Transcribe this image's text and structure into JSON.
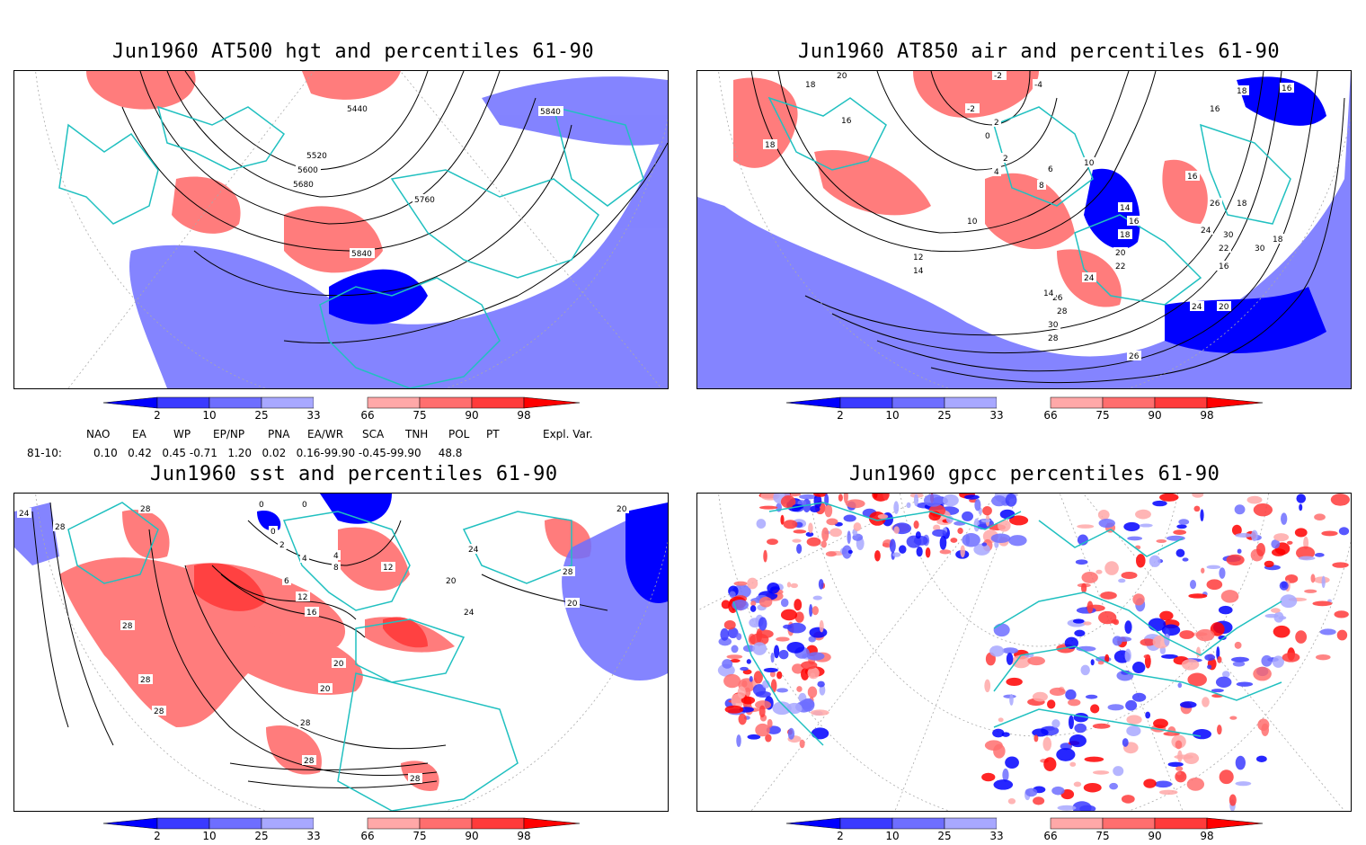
{
  "panels": [
    {
      "id": "p1",
      "title": "Jun1960 AT500 hgt and percentiles 61-90",
      "contour_labels": [
        "5440",
        "5840",
        "5520",
        "5600",
        "5680",
        "5760",
        "5840"
      ]
    },
    {
      "id": "p2",
      "title": "Jun1960 AT850 air and percentiles 61-90",
      "contour_labels": [
        "20",
        "18",
        "-2",
        "-4",
        "-2",
        "2",
        "0",
        "16",
        "18",
        "16",
        "2",
        "4",
        "6",
        "8",
        "10",
        "10",
        "12",
        "14",
        "14",
        "16",
        "18",
        "20",
        "22",
        "24",
        "26",
        "28",
        "30",
        "28",
        "26",
        "24",
        "20",
        "18",
        "16",
        "16",
        "18",
        "16",
        "30",
        "30",
        "14",
        "18",
        "24",
        "22",
        "26"
      ]
    },
    {
      "id": "p3",
      "title": "Jun1960 sst and percentiles 61-90",
      "contour_labels": [
        "24",
        "28",
        "28",
        "28",
        "28",
        "28",
        "0",
        "0",
        "0",
        "2",
        "4",
        "4",
        "8",
        "6",
        "12",
        "12",
        "16",
        "20",
        "20",
        "20",
        "24",
        "24",
        "28",
        "28",
        "28",
        "28",
        "20",
        "20"
      ]
    },
    {
      "id": "p4",
      "title": "Jun1960 gpcc percentiles 61-90",
      "contour_labels": []
    }
  ],
  "colorbar": {
    "labels": [
      "2",
      "10",
      "25",
      "33",
      "66",
      "75",
      "90",
      "98"
    ],
    "colors": {
      "below2": "#0000ff",
      "b2_10": "#3b3bff",
      "b10_25": "#6e6eff",
      "b25_33": "#a8a8ff",
      "a66_75": "#ffa8a8",
      "a75_90": "#ff6e6e",
      "a90_98": "#ff3b3b",
      "above98": "#ff0000"
    }
  },
  "teleconnections": {
    "headers": [
      "NAO",
      "EA",
      "WP",
      "EP/NP",
      "PNA",
      "EA/WR",
      "SCA",
      "TNH",
      "POL",
      "PT",
      "Expl. Var."
    ],
    "row_label": "81-10:",
    "values_line": "0.10   0.42   0.45 -0.71   1.20   0.02   0.16-99.90 -0.45-99.90     48.8"
  },
  "colors": {
    "coast": "#20c0c0",
    "contour": "#000000",
    "grid": "#aaaaaa"
  }
}
